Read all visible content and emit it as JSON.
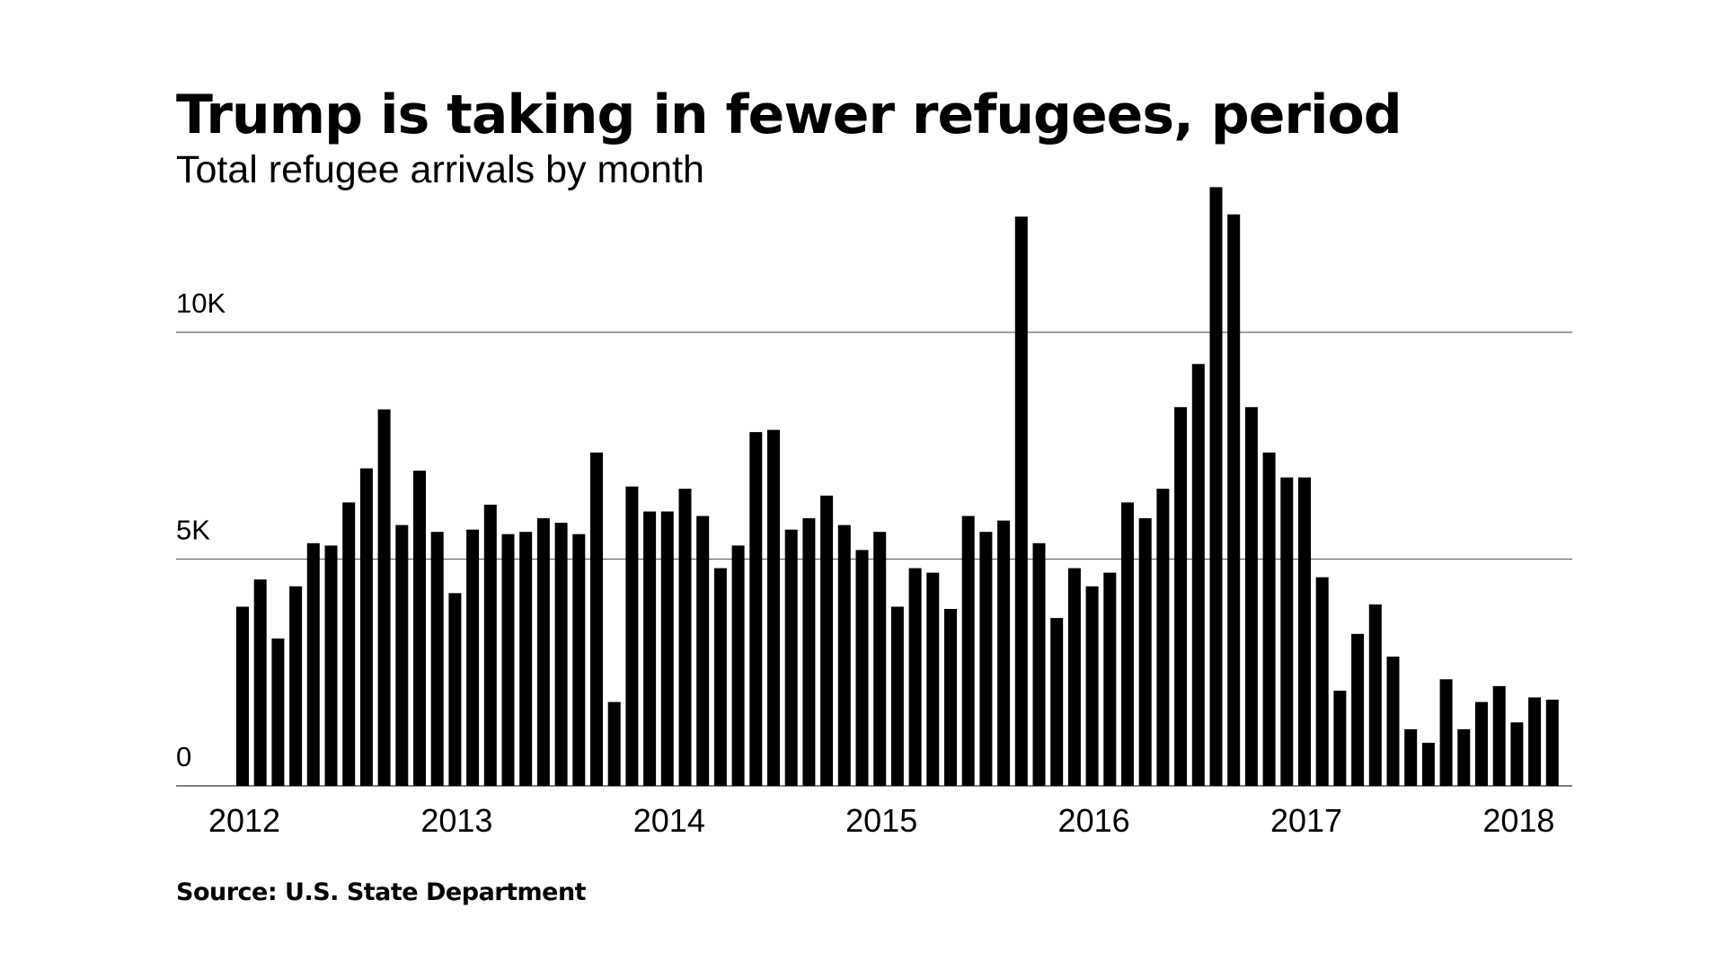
{
  "chart_data": {
    "type": "bar",
    "title": "Trump is taking in fewer refugees, period",
    "subtitle": "Total refugee arrivals by month",
    "source": "Source: U.S. State Department",
    "ylim": [
      0,
      13500
    ],
    "y_ticks": [
      {
        "value": 0,
        "label": "0"
      },
      {
        "value": 5000,
        "label": "5K"
      },
      {
        "value": 10000,
        "label": "10K"
      }
    ],
    "x_ticks": [
      {
        "index": 0,
        "label": "2012"
      },
      {
        "index": 12,
        "label": "2013"
      },
      {
        "index": 24,
        "label": "2014"
      },
      {
        "index": 36,
        "label": "2015"
      },
      {
        "index": 48,
        "label": "2016"
      },
      {
        "index": 60,
        "label": "2017"
      },
      {
        "index": 72,
        "label": "2018"
      }
    ],
    "grid": true,
    "legend": "none",
    "bar_color": "#000000",
    "values": [
      3950,
      4550,
      3250,
      4400,
      5350,
      5300,
      6250,
      7000,
      8300,
      5750,
      6950,
      5600,
      4250,
      5650,
      6200,
      5550,
      5600,
      5900,
      5800,
      5550,
      7350,
      1850,
      6600,
      6050,
      6050,
      6550,
      5950,
      4800,
      5300,
      7800,
      7850,
      5650,
      5900,
      6400,
      5750,
      5200,
      5600,
      3950,
      4800,
      4700,
      3900,
      5950,
      5600,
      5850,
      12550,
      5350,
      3700,
      4800,
      4400,
      4700,
      6250,
      5900,
      6550,
      8350,
      9300,
      13200,
      12600,
      8350,
      7350,
      6800,
      6800,
      4600,
      2100,
      3350,
      4000,
      2850,
      1250,
      950,
      2350,
      1250,
      1850,
      2200,
      1400,
      1950,
      1900
    ]
  }
}
